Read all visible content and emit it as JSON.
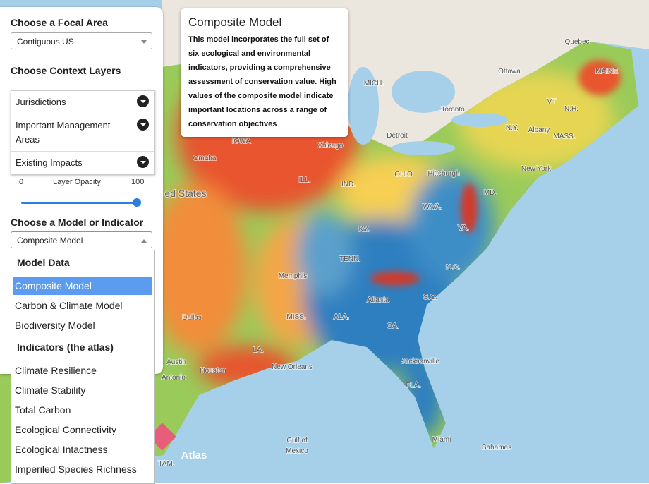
{
  "focal_area": {
    "heading": "Choose a Focal Area",
    "selected": "Contiguous US"
  },
  "context_layers": {
    "heading": "Choose Context Layers",
    "items": [
      "Jurisdictions",
      "Important Management Areas",
      "Existing Impacts"
    ]
  },
  "opacity": {
    "label": "Layer Opacity",
    "min": 0,
    "max": 100,
    "value": 100
  },
  "model": {
    "heading": "Choose a Model or Indicator",
    "selected": "Composite Model",
    "groups": [
      {
        "label": "Model Data",
        "options": [
          "Composite Model",
          "Carbon & Climate Model",
          "Biodiversity Model"
        ]
      },
      {
        "label": "Indicators (the atlas)",
        "options": [
          "Climate Resilience",
          "Climate Stability",
          "Total Carbon",
          "Ecological Connectivity",
          "Ecological Intactness",
          "Imperiled Species Richness"
        ]
      }
    ]
  },
  "info": {
    "title": "Composite Model",
    "text": "This model incorporates the full set of six ecological and environmental indicators, providing a comprehensive assessment of conservation value. High values of the composite model indicate important locations across a range of conservation objectives"
  },
  "map_labels": [
    "Quebec",
    "Ottawa",
    "MAINE",
    "MICH.",
    "Toronto",
    "VT",
    "N.H.",
    "N.Y.",
    "Albany",
    "MASS.",
    "Detroit",
    "Chicago",
    "IOWA",
    "Omaha",
    "OHIO",
    "Pittsburgh",
    "New York",
    "ILL.",
    "IND.",
    "ed States",
    "MD.",
    "W.VA.",
    "VA.",
    "KY.",
    "TENN.",
    "N.C.",
    "Memphis",
    "S.C.",
    "Atlanta",
    "Dallas",
    "MISS.",
    "ALA.",
    "GA.",
    "LA.",
    "Austin",
    "Houston",
    "New Orleans",
    "Jacksonville",
    "Antonio",
    "FLA.",
    "Miami",
    "Bahamas",
    "Gulf of",
    "Mexico",
    "TAM."
  ],
  "logo": "Atlas"
}
